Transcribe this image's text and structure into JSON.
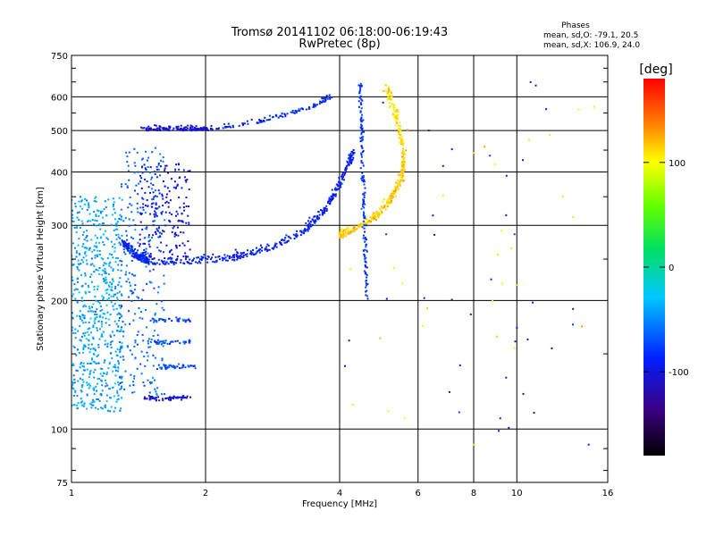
{
  "chart_data": {
    "type": "scatter",
    "title": "Tromsø 20141102 06:18:00-06:19:43",
    "subtitle": "RwPretec (8p)",
    "xlabel": "Frequency [MHz]",
    "ylabel": "Stationary phase Virtual Height [km]",
    "x_scale": "log",
    "y_scale": "log",
    "xlim": [
      1,
      16
    ],
    "ylim": [
      75,
      750
    ],
    "x_ticks": [
      1,
      2,
      4,
      6,
      8,
      10,
      16
    ],
    "x_tick_labels": [
      "1",
      "2",
      "4",
      "6",
      "8",
      "10",
      "16"
    ],
    "y_ticks": [
      75,
      100,
      200,
      300,
      400,
      500,
      600,
      750
    ],
    "y_tick_labels": [
      "75",
      "100",
      "200",
      "300",
      "400",
      "500",
      "600",
      "750"
    ],
    "grid": true,
    "info": {
      "title": "Phases",
      "line1": "mean, sd,O: -79.1, 20.5",
      "line2": "mean, sd,X: 106.9, 24.0"
    },
    "colorbar": {
      "label": "[deg]",
      "range": [
        -180,
        180
      ],
      "ticks": [
        100,
        0,
        -100
      ],
      "tick_labels": [
        "100",
        "0",
        "-100"
      ]
    },
    "point_groups": [
      {
        "kind": "curve",
        "f": [
          1.45,
          2.05
        ],
        "h": [
          500,
          500
        ],
        "phase": -105,
        "n": 140,
        "jf": 0.02,
        "jh": 0.025
      },
      {
        "kind": "curve",
        "f": [
          2.05,
          2.6,
          3.0,
          3.5,
          3.85
        ],
        "h": [
          500,
          520,
          540,
          565,
          600
        ],
        "phase": -85,
        "n": 110,
        "jf": 0.012,
        "jh": 0.02
      },
      {
        "kind": "curve",
        "f": [
          1.3,
          1.4,
          1.5,
          1.8,
          2.3,
          2.8,
          3.3,
          3.7,
          4.0,
          4.3
        ],
        "h": [
          270,
          250,
          243,
          243,
          248,
          262,
          285,
          320,
          370,
          440
        ],
        "phase": -92,
        "n": 520,
        "jf": 0.01,
        "jh": 0.04
      },
      {
        "kind": "curve",
        "f": [
          4.0,
          4.3,
          4.8,
          5.2,
          5.5,
          5.6
        ],
        "h": [
          280,
          290,
          310,
          340,
          380,
          430
        ],
        "phase": 115,
        "n": 260,
        "jf": 0.012,
        "jh": 0.035
      },
      {
        "kind": "curve",
        "f": [
          4.45,
          4.5,
          4.55,
          4.6
        ],
        "h": [
          650,
          450,
          300,
          200
        ],
        "phase": -80,
        "n": 160,
        "jf": 0.01,
        "jh": 0.01
      },
      {
        "kind": "curve",
        "f": [
          5.1,
          5.4,
          5.6
        ],
        "h": [
          620,
          520,
          430
        ],
        "phase": 110,
        "n": 100,
        "jf": 0.015,
        "jh": 0.05
      },
      {
        "kind": "box",
        "f": [
          1.0,
          1.3
        ],
        "h": [
          110,
          350
        ],
        "phase": -42,
        "n": 650
      },
      {
        "kind": "box",
        "f": [
          1.28,
          1.62
        ],
        "h": [
          120,
          460
        ],
        "phase": -62,
        "n": 260
      },
      {
        "kind": "box",
        "f": [
          1.42,
          1.85
        ],
        "h": [
          250,
          420
        ],
        "phase": -100,
        "n": 200
      },
      {
        "kind": "line",
        "f": [
          1.45,
          1.85
        ],
        "h": [
          118,
          118
        ],
        "phase": -105,
        "n": 60
      },
      {
        "kind": "line",
        "f": [
          1.55,
          1.9
        ],
        "h": [
          140,
          140
        ],
        "phase": -70,
        "n": 45
      },
      {
        "kind": "line",
        "f": [
          1.5,
          1.85
        ],
        "h": [
          160,
          160
        ],
        "phase": -72,
        "n": 40
      },
      {
        "kind": "line",
        "f": [
          1.5,
          1.85
        ],
        "h": [
          180,
          180
        ],
        "phase": -72,
        "n": 35
      },
      {
        "kind": "scatter",
        "f": [
          4.0,
          15.0
        ],
        "h": [
          90,
          650
        ],
        "phase": 90,
        "n": 70
      }
    ]
  }
}
